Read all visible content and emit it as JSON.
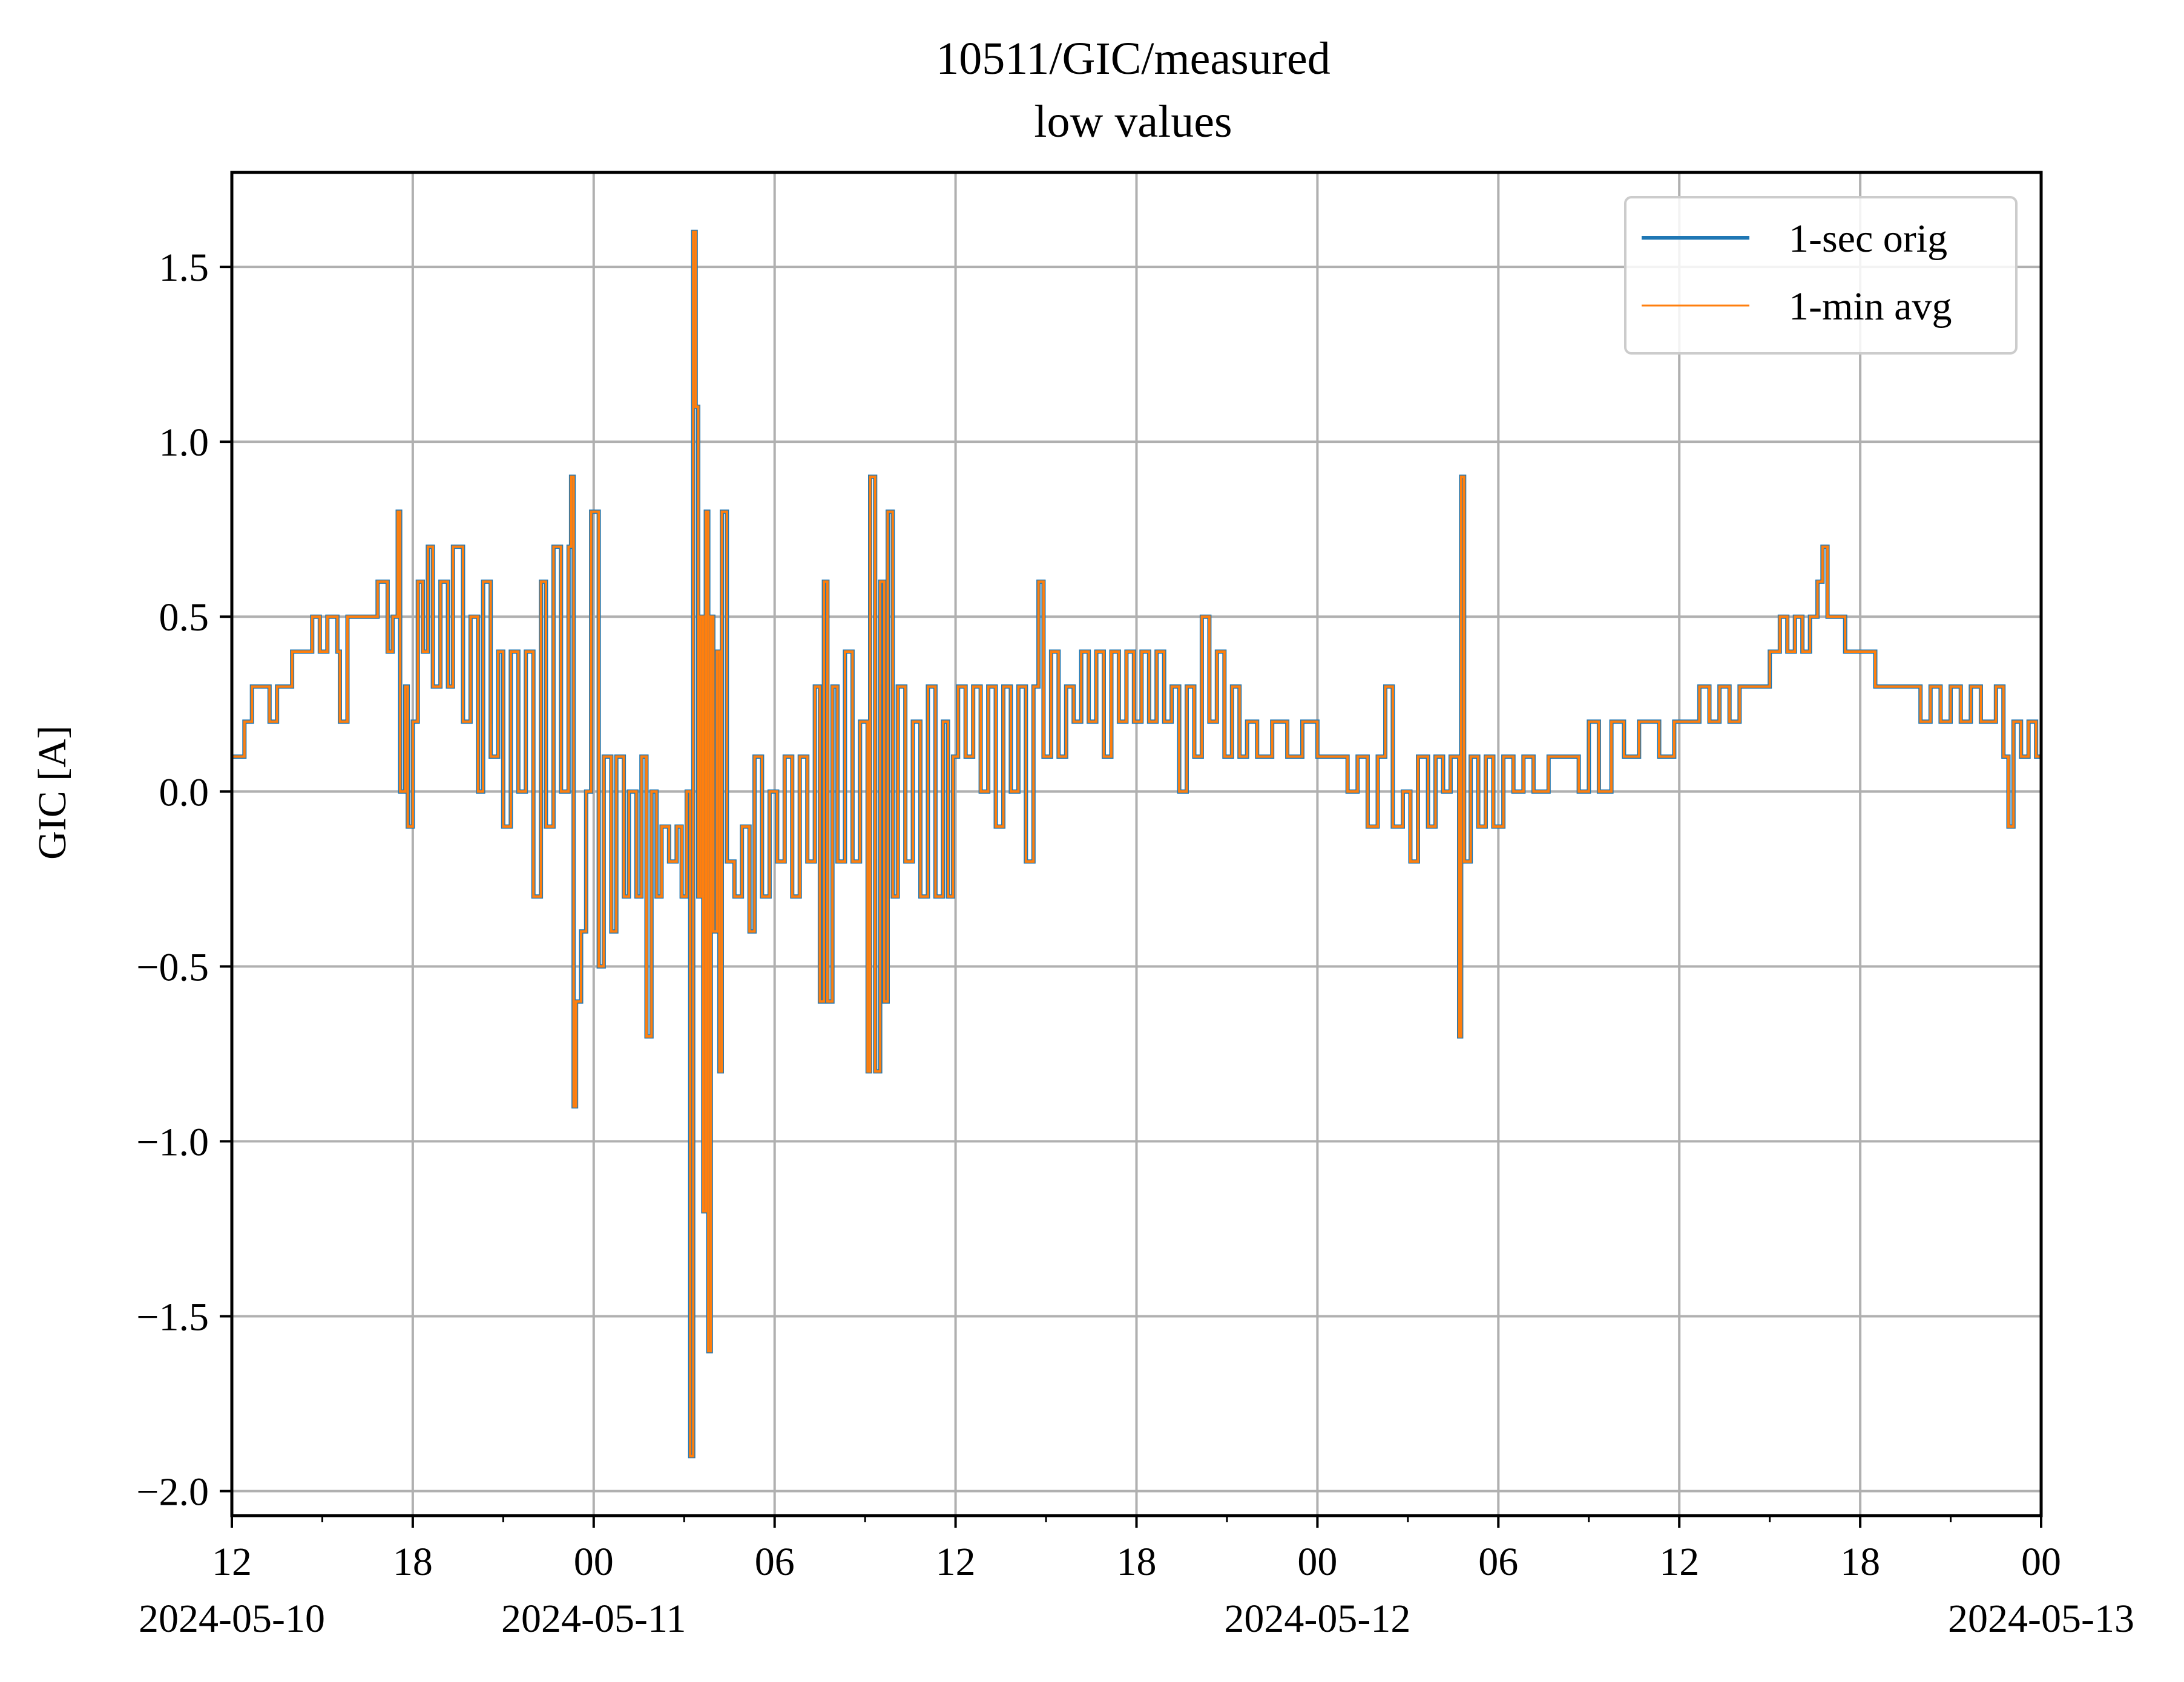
{
  "chart_data": {
    "type": "line",
    "title": "10511/GIC/measured",
    "subtitle": "low values",
    "xlabel": "",
    "ylabel": "GIC [A]",
    "x_range": [
      "2024-05-10 12:00",
      "2024-05-13 00:00"
    ],
    "ylim": [
      -2.07,
      1.77
    ],
    "grid": true,
    "legend_position": "top-right",
    "x_ticks": [
      {
        "value": "2024-05-10 12:00",
        "label": "12",
        "date_label": "2024-05-10"
      },
      {
        "value": "2024-05-10 18:00",
        "label": "18",
        "date_label": ""
      },
      {
        "value": "2024-05-11 00:00",
        "label": "00",
        "date_label": "2024-05-11"
      },
      {
        "value": "2024-05-11 06:00",
        "label": "06",
        "date_label": ""
      },
      {
        "value": "2024-05-11 12:00",
        "label": "12",
        "date_label": ""
      },
      {
        "value": "2024-05-11 18:00",
        "label": "18",
        "date_label": ""
      },
      {
        "value": "2024-05-12 00:00",
        "label": "00",
        "date_label": "2024-05-12"
      },
      {
        "value": "2024-05-12 06:00",
        "label": "06",
        "date_label": ""
      },
      {
        "value": "2024-05-12 12:00",
        "label": "12",
        "date_label": ""
      },
      {
        "value": "2024-05-12 18:00",
        "label": "18",
        "date_label": ""
      },
      {
        "value": "2024-05-13 00:00",
        "label": "00",
        "date_label": "2024-05-13"
      }
    ],
    "y_ticks": [
      {
        "value": 1.5,
        "label": "1.5"
      },
      {
        "value": 1.0,
        "label": "1.0"
      },
      {
        "value": 0.5,
        "label": "0.5"
      },
      {
        "value": 0.0,
        "label": "0.0"
      },
      {
        "value": -0.5,
        "label": "−0.5"
      },
      {
        "value": -1.0,
        "label": "−1.0"
      },
      {
        "value": -1.5,
        "label": "−1.5"
      },
      {
        "value": -2.0,
        "label": "−2.0"
      }
    ],
    "series": [
      {
        "name": "1-sec orig",
        "color": "#1f77b4"
      },
      {
        "name": "1-min avg",
        "color": "#ff7f0e"
      }
    ],
    "points": [
      [
        "2024-05-10 12:00",
        0.1
      ],
      [
        "2024-05-10 12:25",
        0.2
      ],
      [
        "2024-05-10 12:40",
        0.3
      ],
      [
        "2024-05-10 13:05",
        0.3
      ],
      [
        "2024-05-10 13:15",
        0.2
      ],
      [
        "2024-05-10 13:30",
        0.3
      ],
      [
        "2024-05-10 13:50",
        0.3
      ],
      [
        "2024-05-10 14:00",
        0.4
      ],
      [
        "2024-05-10 14:20",
        0.4
      ],
      [
        "2024-05-10 14:40",
        0.5
      ],
      [
        "2024-05-10 14:55",
        0.4
      ],
      [
        "2024-05-10 15:10",
        0.5
      ],
      [
        "2024-05-10 15:30",
        0.4
      ],
      [
        "2024-05-10 15:35",
        0.2
      ],
      [
        "2024-05-10 15:50",
        0.5
      ],
      [
        "2024-05-10 16:20",
        0.5
      ],
      [
        "2024-05-10 16:35",
        0.5
      ],
      [
        "2024-05-10 16:50",
        0.6
      ],
      [
        "2024-05-10 17:10",
        0.4
      ],
      [
        "2024-05-10 17:20",
        0.5
      ],
      [
        "2024-05-10 17:30",
        0.8
      ],
      [
        "2024-05-10 17:35",
        0.0
      ],
      [
        "2024-05-10 17:45",
        0.3
      ],
      [
        "2024-05-10 17:50",
        -0.1
      ],
      [
        "2024-05-10 18:00",
        0.2
      ],
      [
        "2024-05-10 18:10",
        0.6
      ],
      [
        "2024-05-10 18:20",
        0.4
      ],
      [
        "2024-05-10 18:30",
        0.7
      ],
      [
        "2024-05-10 18:40",
        0.3
      ],
      [
        "2024-05-10 18:55",
        0.6
      ],
      [
        "2024-05-10 19:10",
        0.3
      ],
      [
        "2024-05-10 19:20",
        0.7
      ],
      [
        "2024-05-10 19:40",
        0.2
      ],
      [
        "2024-05-10 19:55",
        0.5
      ],
      [
        "2024-05-10 20:10",
        0.0
      ],
      [
        "2024-05-10 20:20",
        0.6
      ],
      [
        "2024-05-10 20:35",
        0.1
      ],
      [
        "2024-05-10 20:50",
        0.4
      ],
      [
        "2024-05-10 21:00",
        -0.1
      ],
      [
        "2024-05-10 21:15",
        0.4
      ],
      [
        "2024-05-10 21:30",
        0.0
      ],
      [
        "2024-05-10 21:45",
        0.4
      ],
      [
        "2024-05-10 22:00",
        -0.3
      ],
      [
        "2024-05-10 22:15",
        0.6
      ],
      [
        "2024-05-10 22:25",
        -0.1
      ],
      [
        "2024-05-10 22:40",
        0.7
      ],
      [
        "2024-05-10 22:55",
        0.0
      ],
      [
        "2024-05-10 23:10",
        0.7
      ],
      [
        "2024-05-10 23:15",
        0.9
      ],
      [
        "2024-05-10 23:20",
        -0.9
      ],
      [
        "2024-05-10 23:25",
        -0.6
      ],
      [
        "2024-05-10 23:35",
        -0.4
      ],
      [
        "2024-05-10 23:45",
        0.0
      ],
      [
        "2024-05-10 23:55",
        0.8
      ],
      [
        "2024-05-11 00:10",
        -0.5
      ],
      [
        "2024-05-11 00:20",
        0.1
      ],
      [
        "2024-05-11 00:35",
        -0.4
      ],
      [
        "2024-05-11 00:45",
        0.1
      ],
      [
        "2024-05-11 01:00",
        -0.3
      ],
      [
        "2024-05-11 01:10",
        0.0
      ],
      [
        "2024-05-11 01:25",
        -0.3
      ],
      [
        "2024-05-11 01:35",
        0.1
      ],
      [
        "2024-05-11 01:45",
        -0.7
      ],
      [
        "2024-05-11 01:55",
        0.0
      ],
      [
        "2024-05-11 02:05",
        -0.3
      ],
      [
        "2024-05-11 02:15",
        -0.1
      ],
      [
        "2024-05-11 02:30",
        -0.2
      ],
      [
        "2024-05-11 02:45",
        -0.1
      ],
      [
        "2024-05-11 02:55",
        -0.3
      ],
      [
        "2024-05-11 03:05",
        0.0
      ],
      [
        "2024-05-11 03:12",
        -1.9
      ],
      [
        "2024-05-11 03:18",
        1.6
      ],
      [
        "2024-05-11 03:23",
        1.1
      ],
      [
        "2024-05-11 03:28",
        -0.3
      ],
      [
        "2024-05-11 03:33",
        0.5
      ],
      [
        "2024-05-11 03:38",
        -1.2
      ],
      [
        "2024-05-11 03:43",
        0.8
      ],
      [
        "2024-05-11 03:48",
        -1.6
      ],
      [
        "2024-05-11 03:53",
        0.5
      ],
      [
        "2024-05-11 03:58",
        -0.4
      ],
      [
        "2024-05-11 04:05",
        0.4
      ],
      [
        "2024-05-11 04:10",
        -0.8
      ],
      [
        "2024-05-11 04:15",
        0.8
      ],
      [
        "2024-05-11 04:25",
        -0.2
      ],
      [
        "2024-05-11 04:40",
        -0.3
      ],
      [
        "2024-05-11 04:55",
        -0.1
      ],
      [
        "2024-05-11 05:10",
        -0.4
      ],
      [
        "2024-05-11 05:20",
        0.1
      ],
      [
        "2024-05-11 05:35",
        -0.3
      ],
      [
        "2024-05-11 05:50",
        0.0
      ],
      [
        "2024-05-11 06:05",
        -0.2
      ],
      [
        "2024-05-11 06:20",
        0.1
      ],
      [
        "2024-05-11 06:35",
        -0.3
      ],
      [
        "2024-05-11 06:50",
        0.1
      ],
      [
        "2024-05-11 07:05",
        -0.2
      ],
      [
        "2024-05-11 07:20",
        0.3
      ],
      [
        "2024-05-11 07:30",
        -0.6
      ],
      [
        "2024-05-11 07:38",
        0.6
      ],
      [
        "2024-05-11 07:45",
        -0.6
      ],
      [
        "2024-05-11 07:55",
        0.3
      ],
      [
        "2024-05-11 08:05",
        -0.2
      ],
      [
        "2024-05-11 08:20",
        0.4
      ],
      [
        "2024-05-11 08:35",
        -0.2
      ],
      [
        "2024-05-11 08:50",
        0.2
      ],
      [
        "2024-05-11 09:05",
        -0.8
      ],
      [
        "2024-05-11 09:10",
        0.9
      ],
      [
        "2024-05-11 09:20",
        -0.8
      ],
      [
        "2024-05-11 09:30",
        0.6
      ],
      [
        "2024-05-11 09:38",
        -0.6
      ],
      [
        "2024-05-11 09:45",
        0.8
      ],
      [
        "2024-05-11 09:55",
        -0.3
      ],
      [
        "2024-05-11 10:05",
        0.3
      ],
      [
        "2024-05-11 10:20",
        -0.2
      ],
      [
        "2024-05-11 10:35",
        0.2
      ],
      [
        "2024-05-11 10:50",
        -0.3
      ],
      [
        "2024-05-11 11:05",
        0.3
      ],
      [
        "2024-05-11 11:20",
        -0.3
      ],
      [
        "2024-05-11 11:35",
        0.2
      ],
      [
        "2024-05-11 11:45",
        -0.3
      ],
      [
        "2024-05-11 11:55",
        0.1
      ],
      [
        "2024-05-11 12:05",
        0.3
      ],
      [
        "2024-05-11 12:20",
        0.1
      ],
      [
        "2024-05-11 12:35",
        0.3
      ],
      [
        "2024-05-11 12:50",
        0.0
      ],
      [
        "2024-05-11 13:05",
        0.3
      ],
      [
        "2024-05-11 13:20",
        -0.1
      ],
      [
        "2024-05-11 13:35",
        0.3
      ],
      [
        "2024-05-11 13:50",
        0.0
      ],
      [
        "2024-05-11 14:05",
        0.3
      ],
      [
        "2024-05-11 14:20",
        -0.2
      ],
      [
        "2024-05-11 14:35",
        0.3
      ],
      [
        "2024-05-11 14:45",
        0.6
      ],
      [
        "2024-05-11 14:55",
        0.1
      ],
      [
        "2024-05-11 15:10",
        0.4
      ],
      [
        "2024-05-11 15:25",
        0.1
      ],
      [
        "2024-05-11 15:40",
        0.3
      ],
      [
        "2024-05-11 15:55",
        0.2
      ],
      [
        "2024-05-11 16:10",
        0.4
      ],
      [
        "2024-05-11 16:25",
        0.2
      ],
      [
        "2024-05-11 16:40",
        0.4
      ],
      [
        "2024-05-11 16:55",
        0.1
      ],
      [
        "2024-05-11 17:10",
        0.4
      ],
      [
        "2024-05-11 17:25",
        0.2
      ],
      [
        "2024-05-11 17:40",
        0.4
      ],
      [
        "2024-05-11 17:55",
        0.2
      ],
      [
        "2024-05-11 18:10",
        0.4
      ],
      [
        "2024-05-11 18:25",
        0.2
      ],
      [
        "2024-05-11 18:40",
        0.4
      ],
      [
        "2024-05-11 18:55",
        0.2
      ],
      [
        "2024-05-11 19:10",
        0.3
      ],
      [
        "2024-05-11 19:25",
        0.0
      ],
      [
        "2024-05-11 19:40",
        0.3
      ],
      [
        "2024-05-11 19:55",
        0.1
      ],
      [
        "2024-05-11 20:10",
        0.5
      ],
      [
        "2024-05-11 20:25",
        0.2
      ],
      [
        "2024-05-11 20:40",
        0.4
      ],
      [
        "2024-05-11 20:55",
        0.1
      ],
      [
        "2024-05-11 21:10",
        0.3
      ],
      [
        "2024-05-11 21:25",
        0.1
      ],
      [
        "2024-05-11 21:40",
        0.2
      ],
      [
        "2024-05-11 22:00",
        0.1
      ],
      [
        "2024-05-11 22:30",
        0.2
      ],
      [
        "2024-05-11 23:00",
        0.1
      ],
      [
        "2024-05-11 23:30",
        0.2
      ],
      [
        "2024-05-12 00:00",
        0.1
      ],
      [
        "2024-05-12 00:40",
        0.1
      ],
      [
        "2024-05-12 01:00",
        0.0
      ],
      [
        "2024-05-12 01:20",
        0.1
      ],
      [
        "2024-05-12 01:40",
        -0.1
      ],
      [
        "2024-05-12 02:00",
        0.1
      ],
      [
        "2024-05-12 02:15",
        0.3
      ],
      [
        "2024-05-12 02:30",
        -0.1
      ],
      [
        "2024-05-12 02:50",
        0.0
      ],
      [
        "2024-05-12 03:05",
        -0.2
      ],
      [
        "2024-05-12 03:20",
        0.1
      ],
      [
        "2024-05-12 03:40",
        -0.1
      ],
      [
        "2024-05-12 03:55",
        0.1
      ],
      [
        "2024-05-12 04:10",
        0.0
      ],
      [
        "2024-05-12 04:25",
        0.1
      ],
      [
        "2024-05-12 04:42",
        -0.7
      ],
      [
        "2024-05-12 04:46",
        0.9
      ],
      [
        "2024-05-12 04:52",
        -0.2
      ],
      [
        "2024-05-12 05:05",
        0.1
      ],
      [
        "2024-05-12 05:20",
        -0.1
      ],
      [
        "2024-05-12 05:35",
        0.1
      ],
      [
        "2024-05-12 05:50",
        -0.1
      ],
      [
        "2024-05-12 06:10",
        0.1
      ],
      [
        "2024-05-12 06:30",
        0.0
      ],
      [
        "2024-05-12 06:50",
        0.1
      ],
      [
        "2024-05-12 07:10",
        0.0
      ],
      [
        "2024-05-12 07:40",
        0.1
      ],
      [
        "2024-05-12 08:20",
        0.1
      ],
      [
        "2024-05-12 08:40",
        0.0
      ],
      [
        "2024-05-12 09:00",
        0.2
      ],
      [
        "2024-05-12 09:20",
        0.0
      ],
      [
        "2024-05-12 09:45",
        0.2
      ],
      [
        "2024-05-12 10:10",
        0.1
      ],
      [
        "2024-05-12 10:40",
        0.2
      ],
      [
        "2024-05-12 11:20",
        0.1
      ],
      [
        "2024-05-12 11:50",
        0.2
      ],
      [
        "2024-05-12 12:20",
        0.2
      ],
      [
        "2024-05-12 12:40",
        0.3
      ],
      [
        "2024-05-12 13:00",
        0.2
      ],
      [
        "2024-05-12 13:20",
        0.3
      ],
      [
        "2024-05-12 13:40",
        0.2
      ],
      [
        "2024-05-12 14:00",
        0.3
      ],
      [
        "2024-05-12 14:30",
        0.3
      ],
      [
        "2024-05-12 15:00",
        0.4
      ],
      [
        "2024-05-12 15:20",
        0.5
      ],
      [
        "2024-05-12 15:35",
        0.4
      ],
      [
        "2024-05-12 15:50",
        0.5
      ],
      [
        "2024-05-12 16:05",
        0.4
      ],
      [
        "2024-05-12 16:20",
        0.5
      ],
      [
        "2024-05-12 16:35",
        0.6
      ],
      [
        "2024-05-12 16:45",
        0.7
      ],
      [
        "2024-05-12 16:55",
        0.5
      ],
      [
        "2024-05-12 17:10",
        0.5
      ],
      [
        "2024-05-12 17:30",
        0.4
      ],
      [
        "2024-05-12 18:00",
        0.4
      ],
      [
        "2024-05-12 18:30",
        0.3
      ],
      [
        "2024-05-12 19:30",
        0.3
      ],
      [
        "2024-05-12 20:00",
        0.2
      ],
      [
        "2024-05-12 20:20",
        0.3
      ],
      [
        "2024-05-12 20:40",
        0.2
      ],
      [
        "2024-05-12 21:00",
        0.3
      ],
      [
        "2024-05-12 21:20",
        0.2
      ],
      [
        "2024-05-12 21:40",
        0.3
      ],
      [
        "2024-05-12 22:00",
        0.2
      ],
      [
        "2024-05-12 22:30",
        0.3
      ],
      [
        "2024-05-12 22:45",
        0.1
      ],
      [
        "2024-05-12 22:55",
        -0.1
      ],
      [
        "2024-05-12 23:05",
        0.2
      ],
      [
        "2024-05-12 23:20",
        0.1
      ],
      [
        "2024-05-12 23:35",
        0.2
      ],
      [
        "2024-05-12 23:50",
        0.1
      ],
      [
        "2024-05-13 00:00",
        0.1
      ]
    ]
  }
}
